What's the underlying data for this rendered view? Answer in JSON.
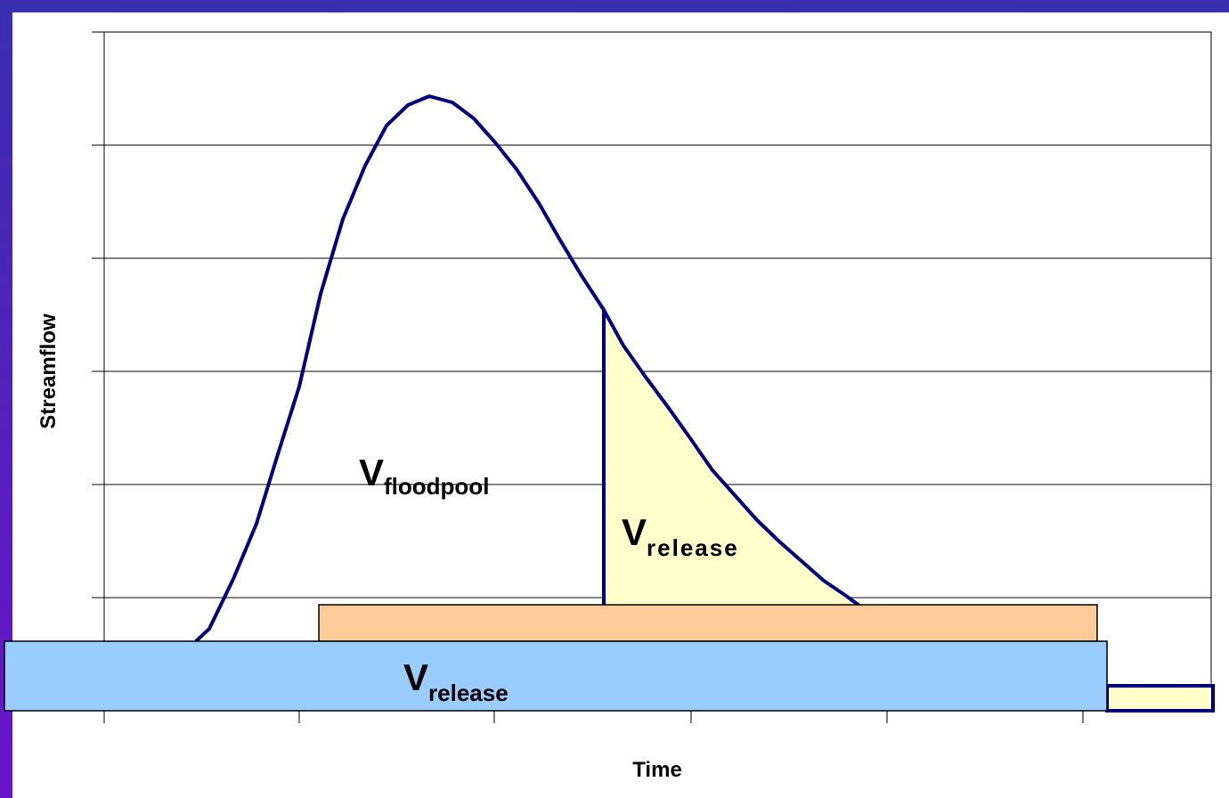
{
  "axes": {
    "y_label": "Streamflow",
    "x_label": "Time"
  },
  "labels": [
    {
      "main": "V",
      "subscript": "floodpool"
    },
    {
      "main": "V",
      "subscript": "release"
    },
    {
      "main": "V",
      "subscript": "release"
    }
  ]
}
